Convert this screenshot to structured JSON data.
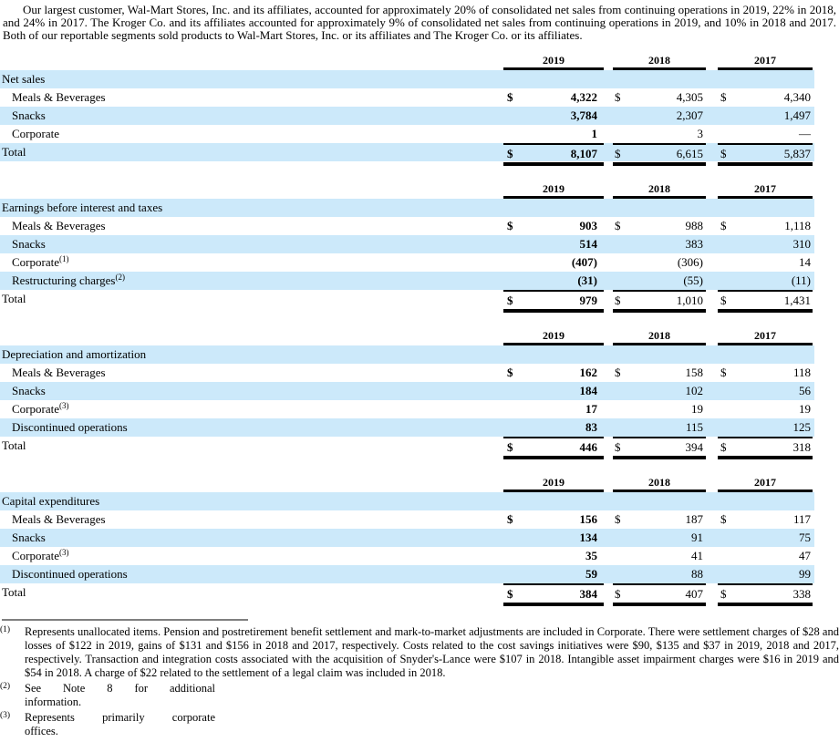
{
  "intro_paragraph": "Our largest customer, Wal-Mart Stores, Inc. and its affiliates, accounted for approximately 20% of consolidated net sales from continuing operations in 2019, 22% in 2018, and 24% in 2017. The Kroger Co. and its affiliates accounted for approximately 9% of consolidated net sales from continuing operations in 2019, and 10% in 2018 and 2017. Both of our reportable segments sold products to Wal-Mart Stores, Inc. or its affiliates and The Kroger Co. or its affiliates.",
  "colors": {
    "row_highlight": "#cce9fa",
    "rule_black": "#000000",
    "footnote_divider_gray": "#7f7f7f"
  },
  "years": [
    "2019",
    "2018",
    "2017"
  ],
  "tables": [
    {
      "section": "Net sales",
      "rows": [
        {
          "label": "Meals & Beverages",
          "sup": "",
          "dollar": true,
          "values": [
            "4,322",
            "4,305",
            "4,340"
          ]
        },
        {
          "label": "Snacks",
          "sup": "",
          "dollar": false,
          "values": [
            "3,784",
            "2,307",
            "1,497"
          ]
        },
        {
          "label": "Corporate",
          "sup": "",
          "dollar": false,
          "values": [
            "1",
            "3",
            "—"
          ]
        }
      ],
      "total": {
        "label": "Total",
        "sup": "",
        "dollar": true,
        "values": [
          "8,107",
          "6,615",
          "5,837"
        ]
      }
    },
    {
      "section": "Earnings before interest and taxes",
      "rows": [
        {
          "label": "Meals & Beverages",
          "sup": "",
          "dollar": true,
          "values": [
            "903",
            "988",
            "1,118"
          ]
        },
        {
          "label": "Snacks",
          "sup": "",
          "dollar": false,
          "values": [
            "514",
            "383",
            "310"
          ]
        },
        {
          "label": "Corporate",
          "sup": "(1)",
          "dollar": false,
          "values": [
            "(407)",
            "(306)",
            "14"
          ]
        },
        {
          "label": "Restructuring charges",
          "sup": "(2)",
          "dollar": false,
          "values": [
            "(31)",
            "(55)",
            "(11)"
          ]
        }
      ],
      "total": {
        "label": "Total",
        "sup": "",
        "dollar": true,
        "values": [
          "979",
          "1,010",
          "1,431"
        ]
      }
    },
    {
      "section": "Depreciation and amortization",
      "rows": [
        {
          "label": "Meals & Beverages",
          "sup": "",
          "dollar": true,
          "values": [
            "162",
            "158",
            "118"
          ]
        },
        {
          "label": "Snacks",
          "sup": "",
          "dollar": false,
          "values": [
            "184",
            "102",
            "56"
          ]
        },
        {
          "label": "Corporate",
          "sup": "(3)",
          "dollar": false,
          "values": [
            "17",
            "19",
            "19"
          ]
        },
        {
          "label": "Discontinued operations",
          "sup": "",
          "dollar": false,
          "values": [
            "83",
            "115",
            "125"
          ]
        }
      ],
      "total": {
        "label": "Total",
        "sup": "",
        "dollar": true,
        "values": [
          "446",
          "394",
          "318"
        ]
      }
    },
    {
      "section": "Capital expenditures",
      "rows": [
        {
          "label": "Meals & Beverages",
          "sup": "",
          "dollar": true,
          "values": [
            "156",
            "187",
            "117"
          ]
        },
        {
          "label": "Snacks",
          "sup": "",
          "dollar": false,
          "values": [
            "134",
            "91",
            "75"
          ]
        },
        {
          "label": "Corporate",
          "sup": "(3)",
          "dollar": false,
          "values": [
            "35",
            "41",
            "47"
          ]
        },
        {
          "label": "Discontinued operations",
          "sup": "",
          "dollar": false,
          "values": [
            "59",
            "88",
            "99"
          ]
        }
      ],
      "total": {
        "label": "Total",
        "sup": "",
        "dollar": true,
        "values": [
          "384",
          "407",
          "338"
        ]
      }
    }
  ],
  "footnotes": [
    {
      "marker": "(1)",
      "text": "Represents unallocated items. Pension and postretirement benefit settlement and mark-to-market adjustments are included in Corporate. There were settlement charges of $28 and losses of $122 in 2019, gains of $131 and $156 in 2018 and 2017, respectively. Costs related to the cost savings initiatives were $90, $135 and $37 in 2019, 2018 and 2017, respectively. Transaction and integration costs associated with the acquisition of Snyder's-Lance were $107 in 2018. Intangible asset impairment charges were $16 in 2019 and $54 in 2018. A charge of $22 related to the settlement of a legal claim was included in 2018."
    },
    {
      "marker": "(2)",
      "lines": [
        "See Note 8 for additional",
        "information."
      ]
    },
    {
      "marker": "(3)",
      "lines": [
        "Represents primarily corporate",
        "offices."
      ]
    }
  ]
}
